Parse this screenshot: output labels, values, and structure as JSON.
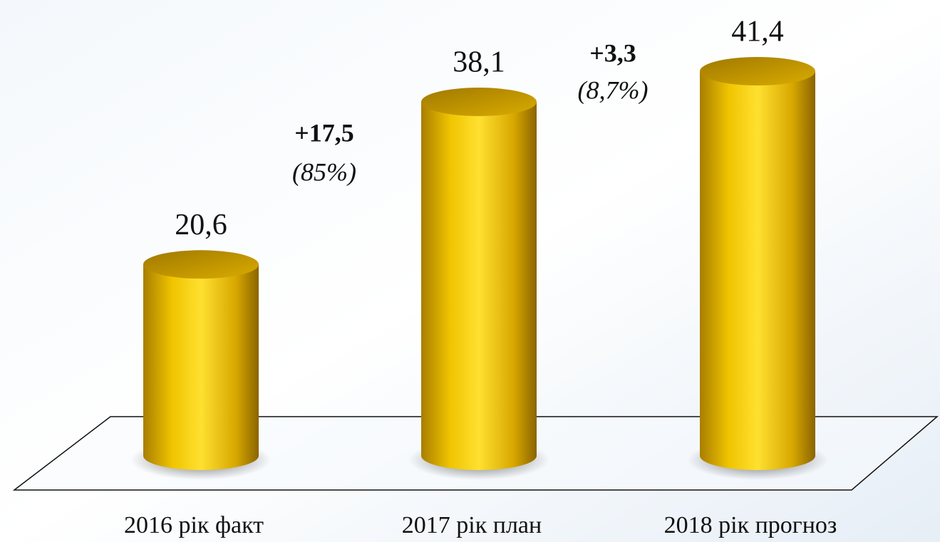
{
  "chart_data": {
    "type": "bar",
    "categories": [
      "2016 рік факт",
      "2017 рік план",
      "2018 рік прогноз"
    ],
    "values": [
      20.6,
      38.1,
      41.4
    ],
    "value_labels": [
      "20,6",
      "38,1",
      "41,4"
    ],
    "color": "#f5c800",
    "annotations": [
      {
        "change": "+17,5",
        "percent": "(85%)"
      },
      {
        "change": "+3,3",
        "percent": "(8,7%)"
      }
    ]
  }
}
